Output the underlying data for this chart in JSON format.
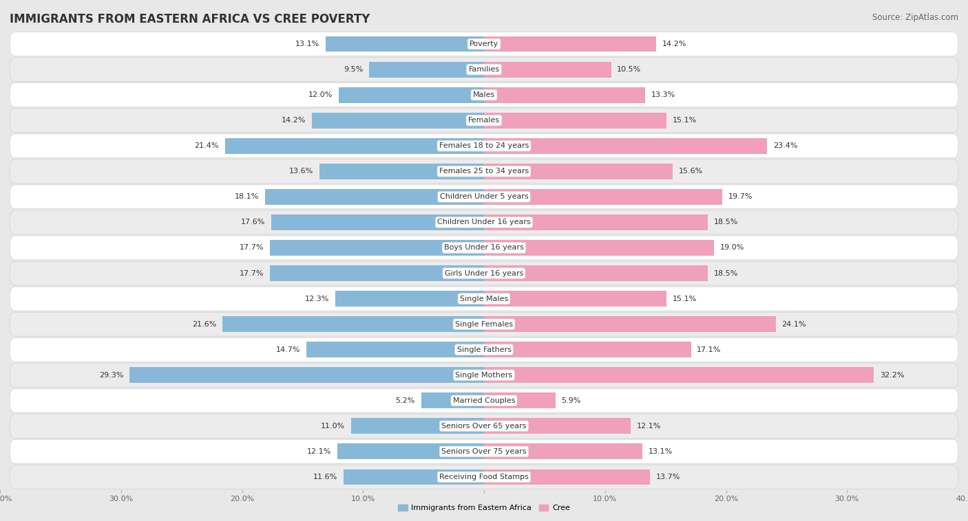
{
  "title": "IMMIGRANTS FROM EASTERN AFRICA VS CREE POVERTY",
  "source": "Source: ZipAtlas.com",
  "categories": [
    "Poverty",
    "Families",
    "Males",
    "Females",
    "Females 18 to 24 years",
    "Females 25 to 34 years",
    "Children Under 5 years",
    "Children Under 16 years",
    "Boys Under 16 years",
    "Girls Under 16 years",
    "Single Males",
    "Single Females",
    "Single Fathers",
    "Single Mothers",
    "Married Couples",
    "Seniors Over 65 years",
    "Seniors Over 75 years",
    "Receiving Food Stamps"
  ],
  "left_values": [
    13.1,
    9.5,
    12.0,
    14.2,
    21.4,
    13.6,
    18.1,
    17.6,
    17.7,
    17.7,
    12.3,
    21.6,
    14.7,
    29.3,
    5.2,
    11.0,
    12.1,
    11.6
  ],
  "right_values": [
    14.2,
    10.5,
    13.3,
    15.1,
    23.4,
    15.6,
    19.7,
    18.5,
    19.0,
    18.5,
    15.1,
    24.1,
    17.1,
    32.2,
    5.9,
    12.1,
    13.1,
    13.7
  ],
  "left_color": "#88b8d8",
  "right_color": "#f0a0ba",
  "bar_height": 0.62,
  "xlim": 40.0,
  "background_color": "#e8e8e8",
  "row_even_color": "#ffffff",
  "row_odd_color": "#ececec",
  "legend_left": "Immigrants from Eastern Africa",
  "legend_right": "Cree",
  "title_fontsize": 12,
  "source_fontsize": 8.5,
  "label_fontsize": 8,
  "value_fontsize": 8,
  "axis_fontsize": 8,
  "axis_label_color": "#666666"
}
